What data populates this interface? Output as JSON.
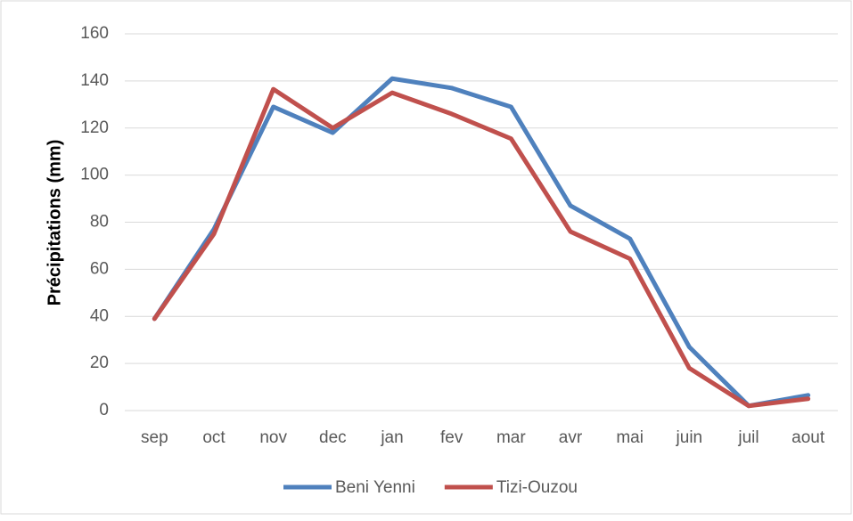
{
  "chart_data": {
    "type": "line",
    "y_label": "Précipitations (mm)",
    "categories": [
      "sep",
      "oct",
      "nov",
      "dec",
      "jan",
      "fev",
      "mar",
      "avr",
      "mai",
      "juin",
      "juil",
      "aout"
    ],
    "series": [
      {
        "name": "Beni Yenni",
        "color": "#4f81bd",
        "values": [
          39,
          77,
          129,
          118,
          141,
          137,
          129,
          87,
          73,
          27,
          2,
          6.5
        ]
      },
      {
        "name": "Tizi-Ouzou",
        "color": "#c0504d",
        "values": [
          39,
          75,
          136.5,
          120,
          135,
          126,
          115.5,
          76,
          64.5,
          18,
          2,
          5
        ]
      }
    ],
    "ylim": [
      0,
      160
    ],
    "yticks": [
      0,
      20,
      40,
      60,
      80,
      100,
      120,
      140,
      160
    ],
    "grid": true,
    "legend": "bottom"
  }
}
